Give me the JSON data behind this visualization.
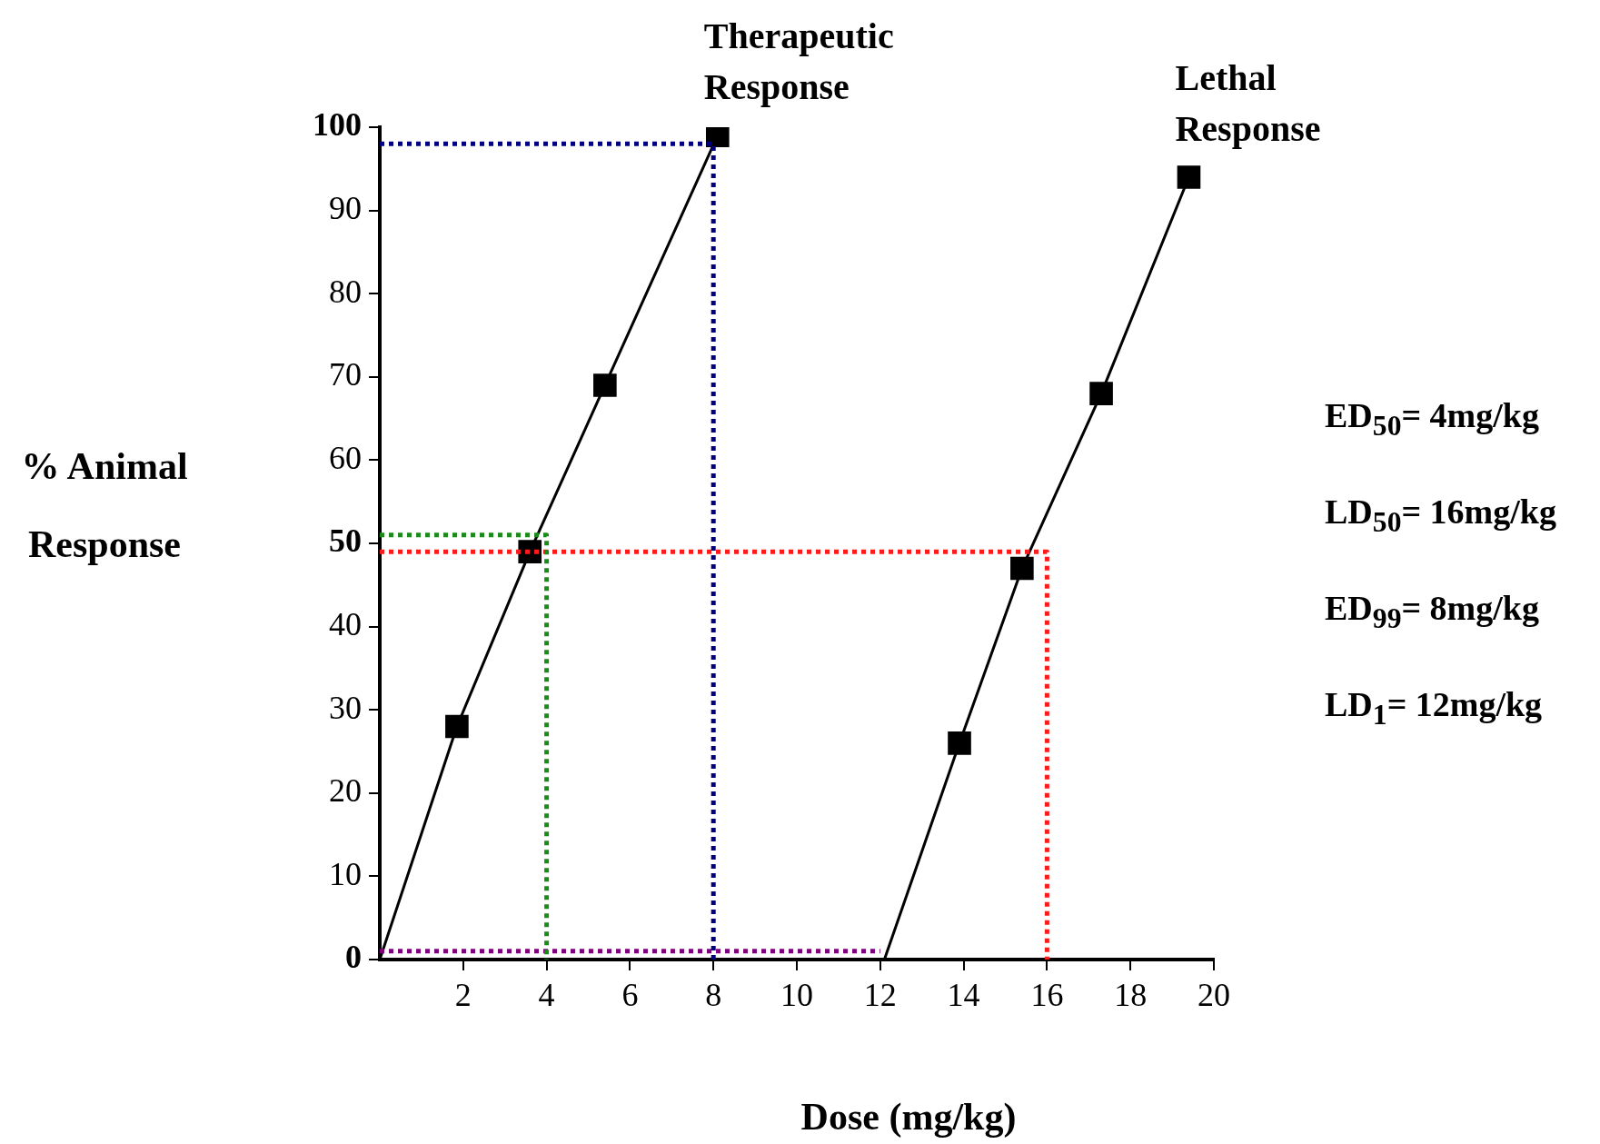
{
  "chart_data": {
    "type": "line",
    "xlabel": "Dose (mg/kg)",
    "ylabel": "% Animal Response",
    "xlim": [
      0,
      20
    ],
    "xticks": [
      2,
      4,
      6,
      8,
      10,
      12,
      14,
      16,
      18,
      20
    ],
    "ylim": [
      0,
      100
    ],
    "yticks": [
      0,
      10,
      20,
      30,
      40,
      50,
      60,
      70,
      80,
      90,
      100
    ],
    "grid": false,
    "legend": false,
    "series": [
      {
        "color": "#00007f",
        "marker": "none",
        "line_style": "dotted",
        "x": [
          0,
          8,
          8
        ],
        "values": [
          98,
          98,
          0
        ]
      },
      {
        "color": "#1a8a1a",
        "marker": "none",
        "line_style": "dotted",
        "x": [
          0,
          4,
          4
        ],
        "values": [
          51,
          51,
          0
        ]
      },
      {
        "color": "#ff1a1a",
        "marker": "none",
        "line_style": "dotted",
        "x": [
          0,
          16,
          16
        ],
        "values": [
          49,
          49,
          0
        ]
      },
      {
        "color": "#800080",
        "marker": "none",
        "line_style": "dotted",
        "x": [
          0,
          12
        ],
        "values": [
          1,
          1
        ]
      },
      {
        "color": "#000000",
        "marker": "none",
        "line_style": "solid",
        "x": [
          0,
          1.85,
          3.6,
          5.4,
          8.1
        ],
        "values": [
          0,
          28,
          49,
          69,
          99
        ]
      },
      {
        "type": "scatter",
        "name": "Therapeutic Response",
        "color": "#000000",
        "marker": "square",
        "x": [
          1.85,
          3.6,
          5.4,
          8.1
        ],
        "values": [
          28,
          49,
          69,
          99
        ]
      },
      {
        "color": "#000000",
        "marker": "none",
        "line_style": "solid",
        "x": [
          12.1,
          13.9,
          15.4,
          17.3,
          19.4
        ],
        "values": [
          0,
          26,
          47,
          68,
          94
        ]
      },
      {
        "type": "scatter",
        "name": "Lethal Response",
        "color": "#000000",
        "marker": "square",
        "x": [
          13.9,
          15.4,
          17.3,
          19.4
        ],
        "values": [
          26,
          47,
          68,
          94
        ]
      }
    ],
    "annotations": [
      "ED$_{50}$= 4mg/kg",
      "LD$_{50}$= 16mg/kg",
      "ED$_{99}$= 8mg/kg",
      "LD$_{1}$= 12mg/kg"
    ]
  }
}
